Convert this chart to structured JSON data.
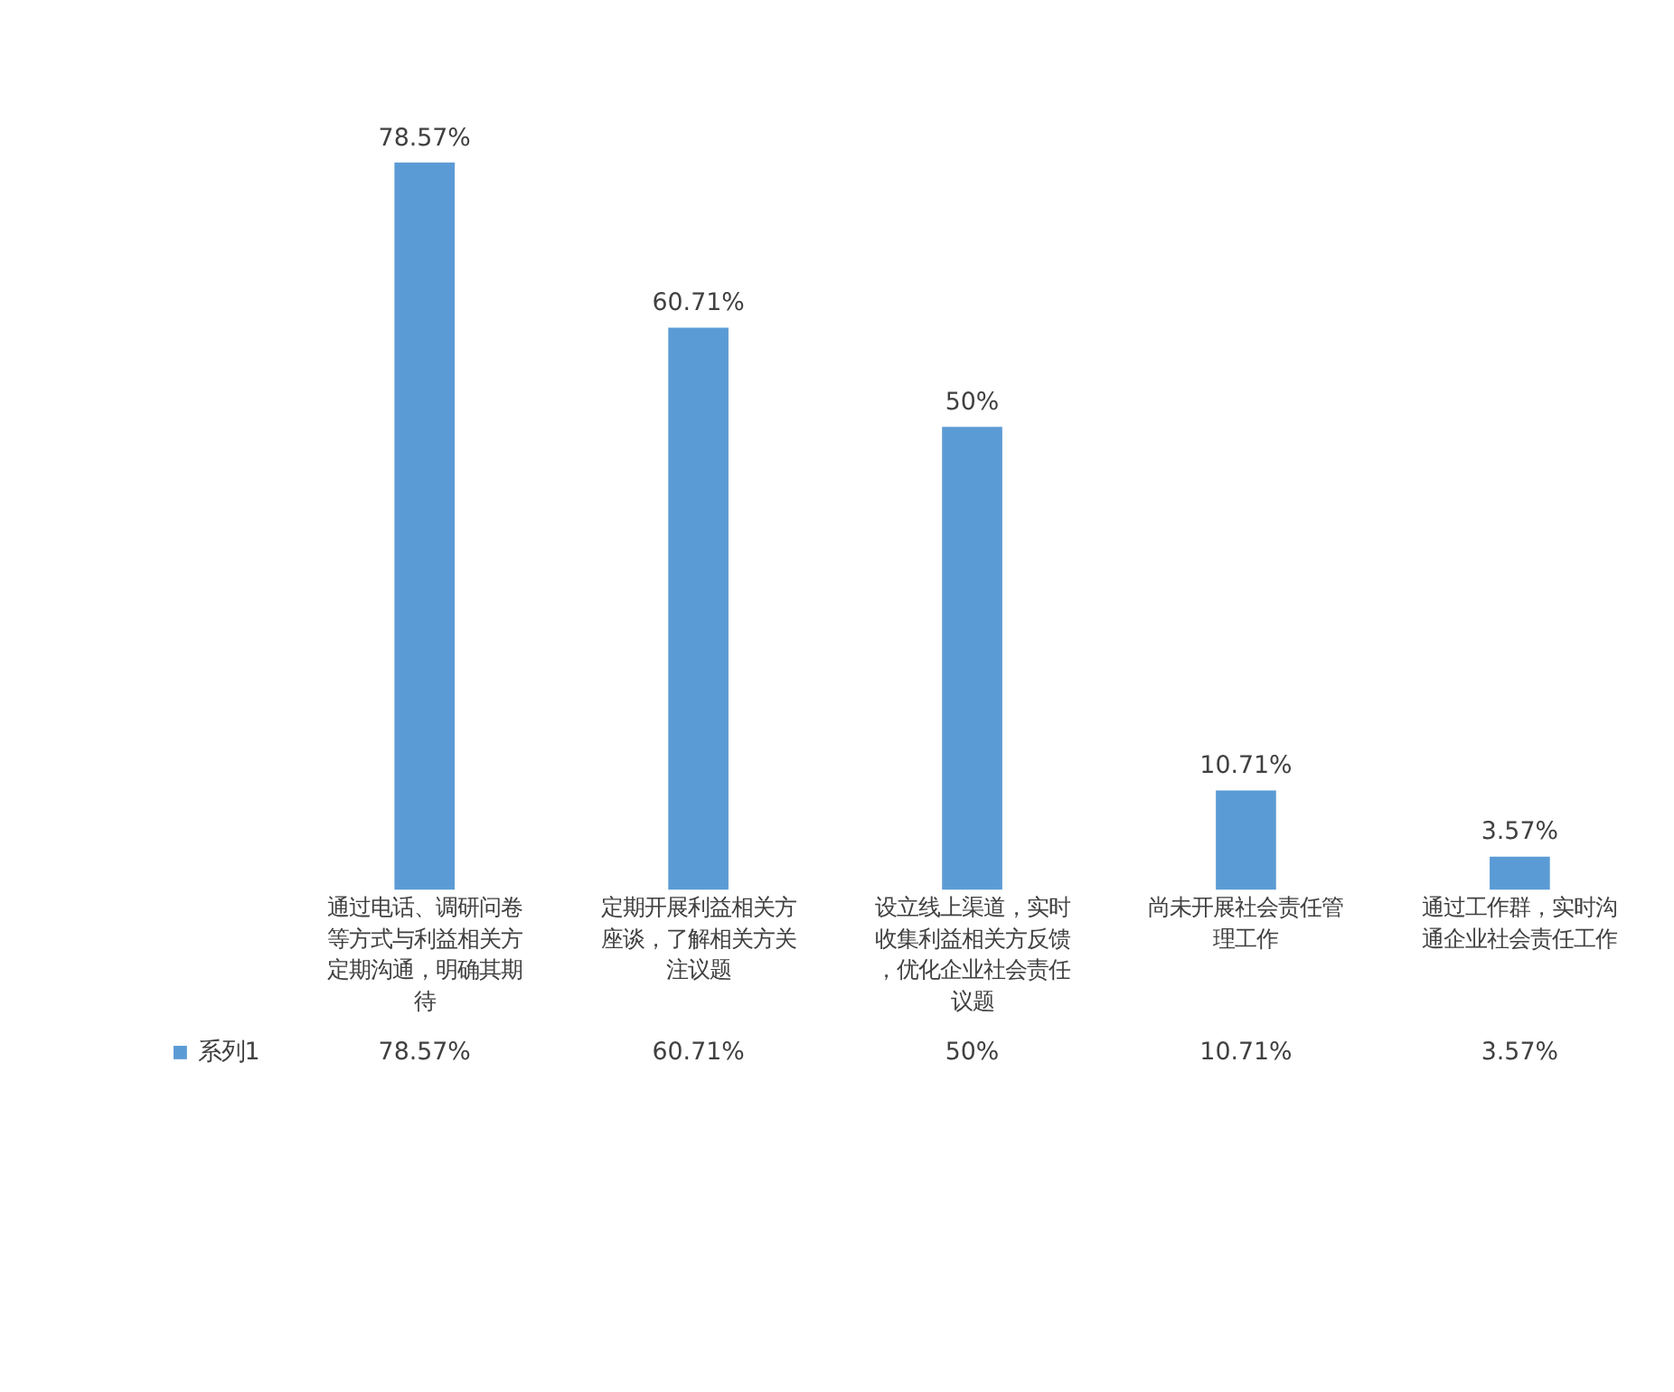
{
  "chart_data": {
    "type": "bar",
    "categories": [
      "通过电话、调研问卷等方式与利益相关方定期沟通，明确其期待",
      "定期开展利益相关方座谈，了解相关方关注议题",
      "设立线上渠道，实时收集利益相关方反馈，优化企业社会责任议题",
      "尚未开展社会责任管理工作",
      "通过工作群，实时沟通企业社会责任工作"
    ],
    "series": [
      {
        "name": "系列1",
        "color": "#5b9bd5",
        "values": [
          78.57,
          60.71,
          50,
          10.71,
          3.57
        ],
        "value_labels": [
          "78.57%",
          "60.71%",
          "50%",
          "10.71%",
          "3.57%"
        ]
      }
    ],
    "data_labels": true,
    "legend": "bottom left"
  }
}
